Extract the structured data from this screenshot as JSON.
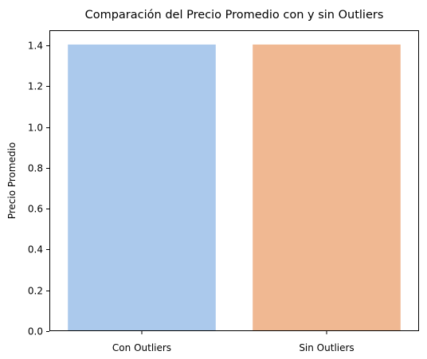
{
  "chart_data": {
    "type": "bar",
    "title": "Comparación del Precio Promedio con y sin Outliers",
    "xlabel": "",
    "ylabel": "Precio Promedio",
    "categories": [
      "Con Outliers",
      "Sin Outliers"
    ],
    "values": [
      1.405,
      1.405
    ],
    "ylim": [
      0,
      1.475
    ],
    "yticks": [
      0.0,
      0.2,
      0.4,
      0.6,
      0.8,
      1.0,
      1.2,
      1.4
    ],
    "ytick_labels": [
      "0.0",
      "0.2",
      "0.4",
      "0.6",
      "0.8",
      "1.0",
      "1.2",
      "1.4"
    ],
    "colors": [
      "#abc9ec",
      "#f0b892"
    ],
    "grid": false,
    "legend": "none"
  }
}
